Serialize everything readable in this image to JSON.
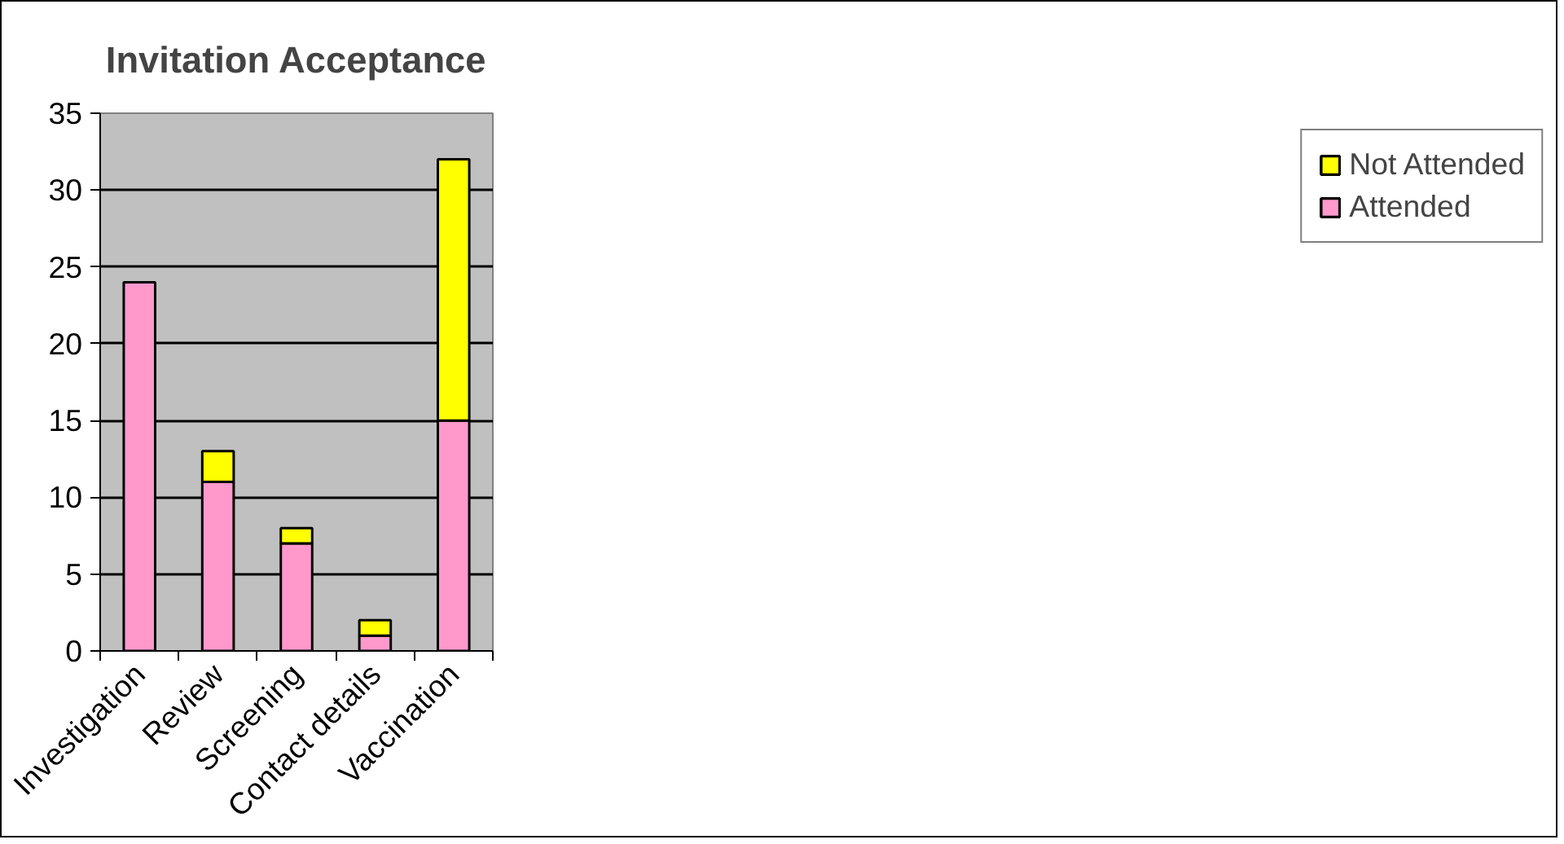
{
  "chart_data": {
    "type": "bar",
    "title": "Invitation Acceptance",
    "categories": [
      "Investigation",
      "Review",
      "Screening",
      "Contact details",
      "Vaccination"
    ],
    "stacked": true,
    "series": [
      {
        "name": "Attended",
        "color": "#ff99cc",
        "values": [
          24,
          11,
          7,
          1,
          15
        ]
      },
      {
        "name": "Not Attended",
        "color": "#ffff00",
        "values": [
          null,
          2,
          1,
          1,
          17
        ]
      }
    ],
    "ylim": [
      0,
      35
    ],
    "yticks": [
      0,
      5,
      10,
      15,
      20,
      25,
      30,
      35
    ],
    "grid": "y",
    "legend": "right"
  }
}
